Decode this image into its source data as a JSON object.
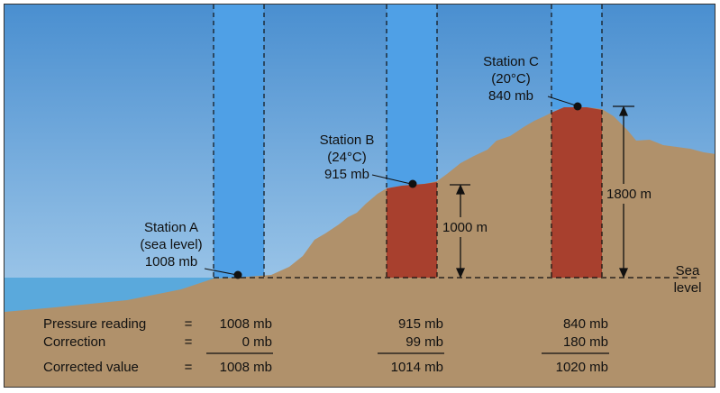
{
  "colors": {
    "sky_top": "#4a8fd0",
    "sky_bottom": "#b8d8f0",
    "water": "#5aa9dc",
    "ground": "#b0916b",
    "column_blue": "#4fa0e6",
    "column_red": "#a8402e"
  },
  "stations": [
    {
      "name": "Station A",
      "condition": "(sea level)",
      "pressure": "1008 mb"
    },
    {
      "name": "Station B",
      "condition": "(24°C)",
      "pressure": "915 mb"
    },
    {
      "name": "Station C",
      "condition": "(20°C)",
      "pressure": "840 mb"
    }
  ],
  "heights": {
    "b": "1000 m",
    "c": "1800 m"
  },
  "sea_level": {
    "line1": "Sea",
    "line2": "level"
  },
  "table": {
    "row_labels": [
      "Pressure reading",
      "Correction",
      "Corrected value"
    ],
    "equals": "=",
    "columns": [
      {
        "reading": "1008 mb",
        "correction": "0 mb",
        "corrected": "1008 mb"
      },
      {
        "reading": "915 mb",
        "correction": "99 mb",
        "corrected": "1014 mb"
      },
      {
        "reading": "840 mb",
        "correction": "180 mb",
        "corrected": "1020 mb"
      }
    ]
  }
}
